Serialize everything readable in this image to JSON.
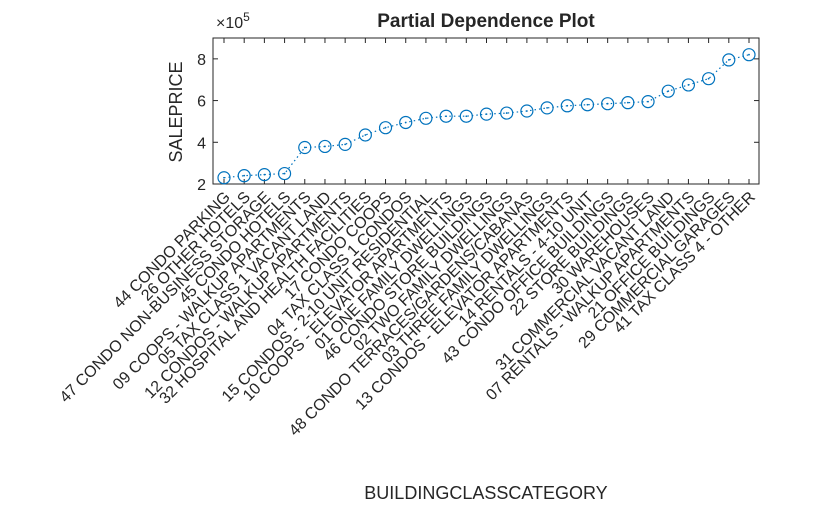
{
  "chart_data": {
    "type": "line",
    "title": "Partial Dependence Plot",
    "xlabel": "BUILDINGCLASSCATEGORY",
    "ylabel": "SALEPRICE",
    "y_multiplier": "×10",
    "y_multiplier_exp": "5",
    "ylim": [
      2,
      9
    ],
    "yticks": [
      2,
      4,
      6,
      8
    ],
    "marker": "circle",
    "line_style": "dotted",
    "color": "#0072BD",
    "categories": [
      "44  CONDO PARKING",
      "26  OTHER HOTELS",
      "47  CONDO NON-BUSINESS STORAGE",
      "45  CONDO HOTELS",
      "09  COOPS - WALKUP APARTMENTS",
      "05  TAX CLASS 1 VACANT LAND",
      "12  CONDOS - WALKUP APARTMENTS",
      "32  HOSPITAL AND HEALTH FACILITIES",
      "17  CONDO COOPS",
      "04  TAX CLASS 1 CONDOS",
      "15  CONDOS - 2-10 UNIT RESIDENTIAL",
      "10  COOPS - ELEVATOR APARTMENTS",
      "01  ONE FAMILY DWELLINGS",
      "46  CONDO STORE BUILDINGS",
      "02  TWO FAMILY DWELLINGS",
      "48  CONDO TERRACES/GARDENS/CABANAS",
      "03  THREE FAMILY DWELLINGS",
      "13  CONDOS - ELEVATOR APARTMENTS",
      "14  RENTALS - 4-10 UNIT",
      "43  CONDO OFFICE BUILDINGS",
      "22  STORE BUILDINGS",
      "30  WAREHOUSES",
      "31  COMMERCIAL VACANT LAND",
      "07  RENTALS - WALKUP APARTMENTS",
      "21  OFFICE BUILDINGS",
      "29  COMMERCIAL GARAGES",
      "41  TAX CLASS 4 - OTHER"
    ],
    "values": [
      2.3,
      2.4,
      2.45,
      2.5,
      3.75,
      3.8,
      3.9,
      4.35,
      4.7,
      4.95,
      5.15,
      5.25,
      5.25,
      5.35,
      5.4,
      5.5,
      5.65,
      5.75,
      5.8,
      5.85,
      5.9,
      5.95,
      6.45,
      6.75,
      7.05,
      7.95,
      8.2
    ],
    "grid": false
  }
}
